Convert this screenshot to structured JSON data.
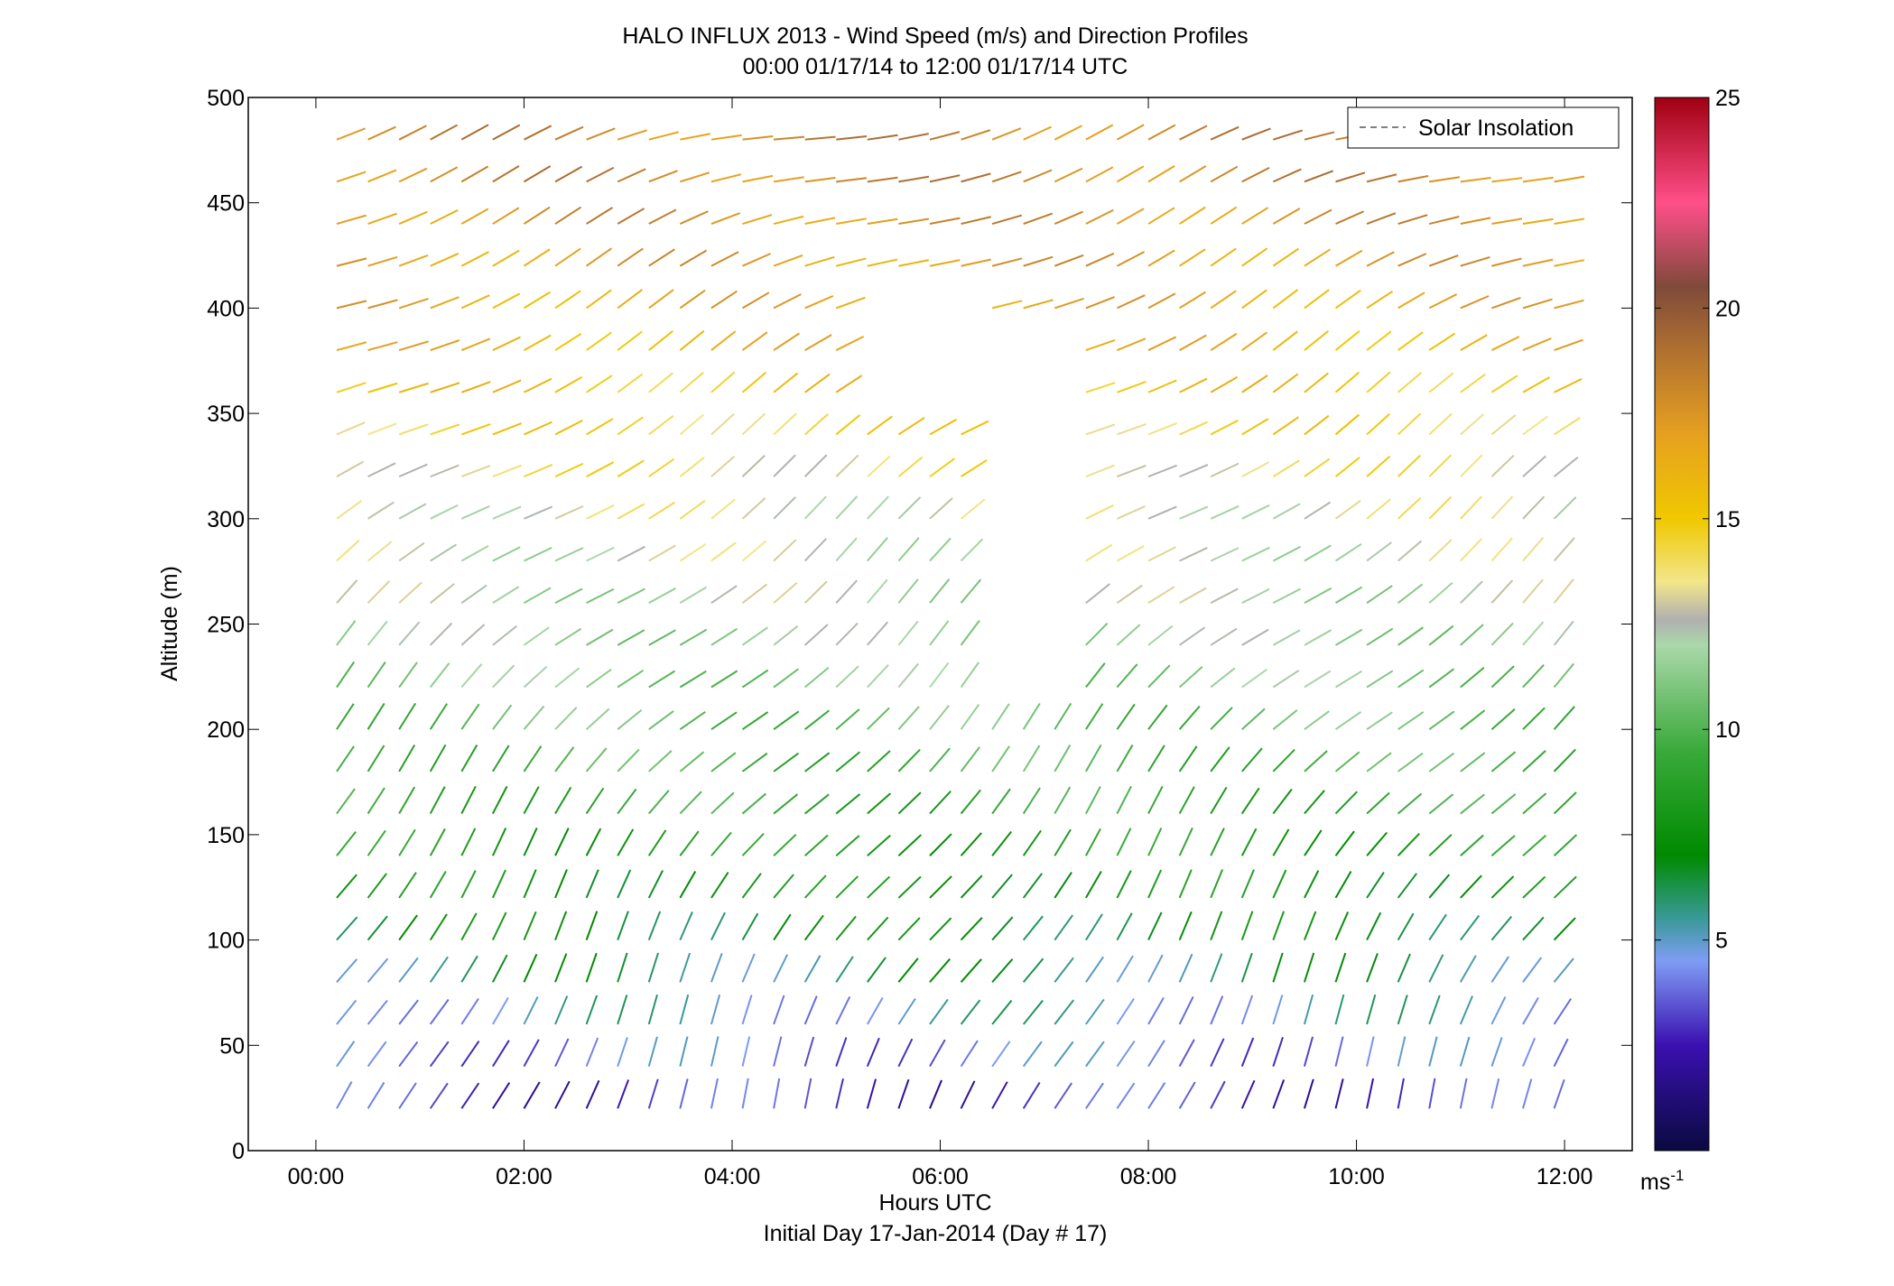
{
  "chart_data": {
    "type": "wind-barb profile",
    "title": "HALO INFLUX 2013 - Wind Speed (m/s) and Direction Profiles",
    "subtitle": "00:00 01/17/14 to 12:00 01/17/14  UTC",
    "xlabel": "Hours UTC",
    "xlabel2": "Initial Day 17-Jan-2014 (Day # 17)",
    "ylabel": "Altitude (m)",
    "x_ticks": [
      "00:00",
      "02:00",
      "04:00",
      "06:00",
      "08:00",
      "10:00",
      "12:00"
    ],
    "x_range_hours": [
      -0.65,
      12.65
    ],
    "ylim": [
      0,
      500
    ],
    "y_ticks": [
      0,
      50,
      100,
      150,
      200,
      250,
      300,
      350,
      400,
      450,
      500
    ],
    "altitudes_m": [
      20,
      40,
      60,
      80,
      100,
      120,
      140,
      160,
      180,
      200,
      220,
      240,
      260,
      280,
      300,
      320,
      340,
      360,
      380,
      400,
      420,
      440,
      460,
      480
    ],
    "times_h": [
      0.2,
      0.5,
      0.8,
      1.1,
      1.4,
      1.7,
      2.0,
      2.3,
      2.6,
      2.9,
      3.2,
      3.5,
      3.8,
      4.1,
      4.4,
      4.7,
      5.0,
      5.3,
      5.6,
      5.9,
      6.2,
      6.5,
      6.8,
      7.1,
      7.4,
      7.7,
      8.0,
      8.3,
      8.6,
      8.9,
      9.2,
      9.5,
      9.8,
      10.1,
      10.4,
      10.7,
      11.0,
      11.3,
      11.6,
      11.9
    ],
    "missing_regions_description_values": {
      "gap1": {
        "t": [
          6.3,
          7.1
        ],
        "alt": [
          220,
          380
        ]
      },
      "gap2": {
        "t": [
          5.3,
          6.3
        ],
        "alt": [
          360,
          410
        ]
      }
    },
    "direction_deg_by_altitude": {
      "low": 200,
      "mid": 230,
      "high": 255
    },
    "speed_mps_by_altitude": {
      "20": 3,
      "60": 5,
      "100": 7,
      "160": 9,
      "220": 11,
      "300": 13,
      "380": 16,
      "460": 18
    },
    "legend": [
      {
        "name": "Solar Insolation",
        "style": "dashed",
        "color": "#808080"
      }
    ],
    "legend_position": "top-right",
    "colorbar": {
      "label": "ms-1",
      "unit_base": "ms",
      "unit_exp": "-1",
      "range": [
        0,
        25
      ],
      "ticks": [
        5,
        10,
        15,
        20,
        25
      ],
      "stops": [
        {
          "v": 0,
          "color": "#0a0a40"
        },
        {
          "v": 2.5,
          "color": "#3a10b0"
        },
        {
          "v": 4.5,
          "color": "#7f9cf5"
        },
        {
          "v": 5.5,
          "color": "#3a9a98"
        },
        {
          "v": 7,
          "color": "#008a00"
        },
        {
          "v": 9.5,
          "color": "#3aaa3a"
        },
        {
          "v": 12,
          "color": "#aad8aa"
        },
        {
          "v": 12.6,
          "color": "#b0b0b0"
        },
        {
          "v": 13.5,
          "color": "#f2e68a"
        },
        {
          "v": 15,
          "color": "#f0c800"
        },
        {
          "v": 17,
          "color": "#e6a020"
        },
        {
          "v": 19,
          "color": "#b07030"
        },
        {
          "v": 20.5,
          "color": "#7f4a3a"
        },
        {
          "v": 22.5,
          "color": "#ff4f8a"
        },
        {
          "v": 25,
          "color": "#a00010"
        }
      ]
    }
  }
}
